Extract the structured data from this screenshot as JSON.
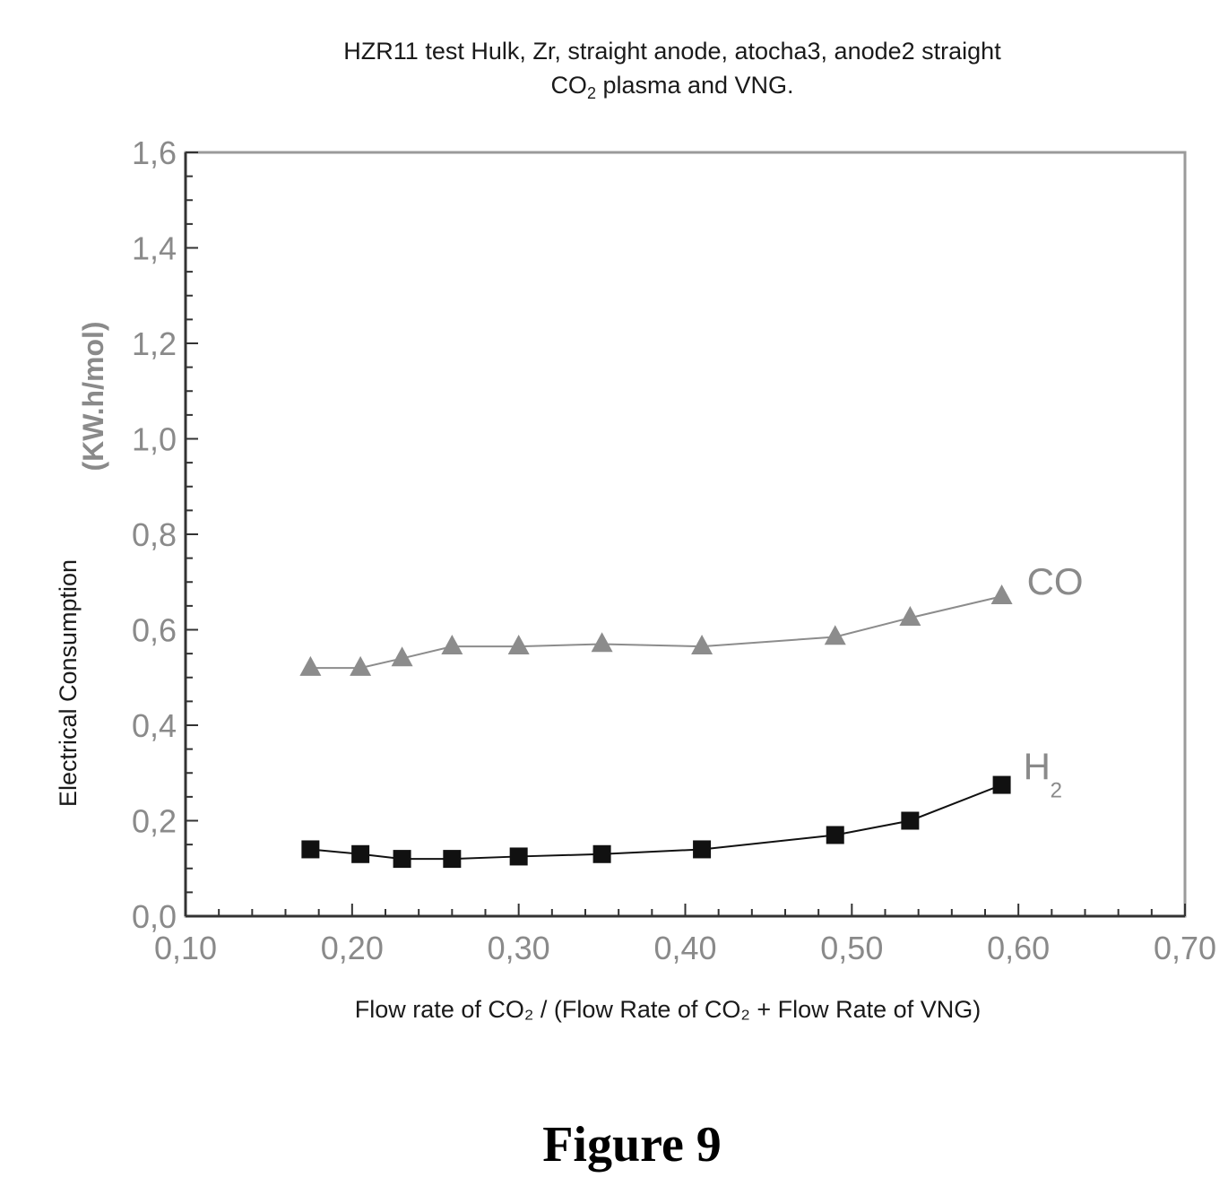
{
  "chart_data": {
    "type": "line",
    "title_line1": "HZR11 test Hulk, Zr, straight anode, atocha3, anode2 straight",
    "title_line2_prefix": "CO",
    "title_line2_sub": "2",
    "title_line2_suffix": " plasma and VNG.",
    "ylabel_main": "Electrical Consumption",
    "ylabel_units": "(KW.h/mol)",
    "xlabel": "Flow rate of CO₂ / (Flow Rate of CO₂ + Flow Rate of VNG)",
    "xlim": [
      0.1,
      0.7
    ],
    "ylim": [
      0.0,
      1.6
    ],
    "xticks": [
      "0,10",
      "0,20",
      "0,30",
      "0,40",
      "0,50",
      "0,60",
      "0,70"
    ],
    "yticks": [
      "0,0",
      "0,2",
      "0,4",
      "0,6",
      "0,8",
      "1,0",
      "1,2",
      "1,4",
      "1,6"
    ],
    "grid": false,
    "legend": "inline labels at series ends",
    "series": [
      {
        "name": "CO",
        "marker": "triangle",
        "color": "#8c8c8c",
        "x": [
          0.175,
          0.205,
          0.23,
          0.26,
          0.3,
          0.35,
          0.41,
          0.49,
          0.535,
          0.59
        ],
        "y": [
          0.52,
          0.52,
          0.54,
          0.565,
          0.565,
          0.57,
          0.565,
          0.585,
          0.625,
          0.67
        ]
      },
      {
        "name": "H",
        "name_sub": "2",
        "marker": "square",
        "color": "#111111",
        "x": [
          0.175,
          0.205,
          0.23,
          0.26,
          0.3,
          0.35,
          0.41,
          0.49,
          0.535,
          0.59
        ],
        "y": [
          0.14,
          0.13,
          0.12,
          0.12,
          0.125,
          0.13,
          0.14,
          0.17,
          0.2,
          0.275
        ]
      }
    ]
  },
  "caption": "Figure 9"
}
